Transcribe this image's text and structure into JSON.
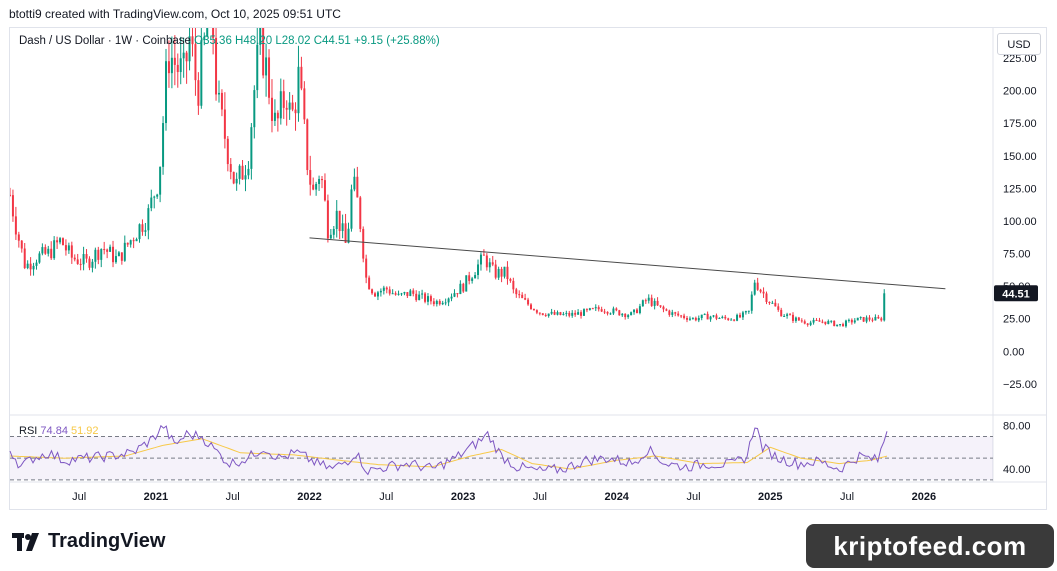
{
  "header": {
    "text": "btotti9 created with TradingView.com, Oct 10, 2025 09:51 UTC"
  },
  "legend": {
    "symbol": "Dash / US Dollar · 1W · Coinbase",
    "ohlc": "O35.36  H48.20  L28.02  C44.51",
    "change": "+9.15 (+25.88%)"
  },
  "currency_button": "USD",
  "rsi_label": {
    "name": "RSI",
    "value": "74.84",
    "ma": "51.92"
  },
  "footer": {
    "logo_text": "TradingView",
    "watermark": "kriptofeed.com"
  },
  "colors": {
    "up": "#089981",
    "down": "#f23645",
    "rsi": "#7e57c2",
    "rsi_ma": "#f7c948",
    "trendline": "#4a4a4a",
    "last_price_bg": "#131722"
  },
  "chart_data": [
    {
      "type": "candlestick",
      "pair": "Dash / US Dollar",
      "interval": "1W",
      "y_axis": {
        "ticks": [
          -25,
          0,
          25,
          50,
          75,
          100,
          125,
          150,
          175,
          200,
          225
        ],
        "tick_labels": [
          "−25.00",
          "0.00",
          "25.00",
          "50.00",
          "75.00",
          "100.00",
          "125.00",
          "150.00",
          "175.00",
          "200.00",
          "225.00"
        ],
        "range": [
          -45,
          248
        ]
      },
      "x_axis": {
        "labels": [
          {
            "label": "Jul",
            "t": 2020.5
          },
          {
            "label": "2021",
            "t": 2021.0
          },
          {
            "label": "Jul",
            "t": 2021.5
          },
          {
            "label": "2022",
            "t": 2022.0
          },
          {
            "label": "Jul",
            "t": 2022.5
          },
          {
            "label": "2023",
            "t": 2023.0
          },
          {
            "label": "Jul",
            "t": 2023.5
          },
          {
            "label": "2024",
            "t": 2024.0
          },
          {
            "label": "Jul",
            "t": 2024.5
          },
          {
            "label": "2025",
            "t": 2025.0
          },
          {
            "label": "Jul",
            "t": 2025.5
          },
          {
            "label": "2026",
            "t": 2026.0
          }
        ],
        "range": [
          2020.05,
          2026.45
        ]
      },
      "price_path": [
        {
          "t": 2020.05,
          "v": 120
        },
        {
          "t": 2020.1,
          "v": 90
        },
        {
          "t": 2020.15,
          "v": 65
        },
        {
          "t": 2020.22,
          "v": 72
        },
        {
          "t": 2020.3,
          "v": 75
        },
        {
          "t": 2020.38,
          "v": 85
        },
        {
          "t": 2020.45,
          "v": 72
        },
        {
          "t": 2020.55,
          "v": 68
        },
        {
          "t": 2020.65,
          "v": 80
        },
        {
          "t": 2020.75,
          "v": 70
        },
        {
          "t": 2020.85,
          "v": 88
        },
        {
          "t": 2020.95,
          "v": 105
        },
        {
          "t": 2021.02,
          "v": 135
        },
        {
          "t": 2021.08,
          "v": 230
        },
        {
          "t": 2021.13,
          "v": 220
        },
        {
          "t": 2021.18,
          "v": 210
        },
        {
          "t": 2021.22,
          "v": 240
        },
        {
          "t": 2021.27,
          "v": 200
        },
        {
          "t": 2021.31,
          "v": 230
        },
        {
          "t": 2021.36,
          "v": 270
        },
        {
          "t": 2021.4,
          "v": 190
        },
        {
          "t": 2021.46,
          "v": 160
        },
        {
          "t": 2021.52,
          "v": 125
        },
        {
          "t": 2021.6,
          "v": 150
        },
        {
          "t": 2021.64,
          "v": 200
        },
        {
          "t": 2021.68,
          "v": 240
        },
        {
          "t": 2021.72,
          "v": 215
        },
        {
          "t": 2021.78,
          "v": 170
        },
        {
          "t": 2021.85,
          "v": 200
        },
        {
          "t": 2021.88,
          "v": 175
        },
        {
          "t": 2021.93,
          "v": 210
        },
        {
          "t": 2021.98,
          "v": 150
        },
        {
          "t": 2022.02,
          "v": 120
        },
        {
          "t": 2022.07,
          "v": 140
        },
        {
          "t": 2022.12,
          "v": 95
        },
        {
          "t": 2022.18,
          "v": 105
        },
        {
          "t": 2022.24,
          "v": 80
        },
        {
          "t": 2022.28,
          "v": 130
        },
        {
          "t": 2022.32,
          "v": 110
        },
        {
          "t": 2022.37,
          "v": 55
        },
        {
          "t": 2022.42,
          "v": 45
        },
        {
          "t": 2022.5,
          "v": 48
        },
        {
          "t": 2022.58,
          "v": 42
        },
        {
          "t": 2022.66,
          "v": 45
        },
        {
          "t": 2022.75,
          "v": 40
        },
        {
          "t": 2022.83,
          "v": 38
        },
        {
          "t": 2022.9,
          "v": 42
        },
        {
          "t": 2023.0,
          "v": 50
        },
        {
          "t": 2023.07,
          "v": 62
        },
        {
          "t": 2023.14,
          "v": 72
        },
        {
          "t": 2023.2,
          "v": 60
        },
        {
          "t": 2023.28,
          "v": 60
        },
        {
          "t": 2023.33,
          "v": 45
        },
        {
          "t": 2023.4,
          "v": 38
        },
        {
          "t": 2023.5,
          "v": 30
        },
        {
          "t": 2023.6,
          "v": 28
        },
        {
          "t": 2023.7,
          "v": 28
        },
        {
          "t": 2023.8,
          "v": 30
        },
        {
          "t": 2023.9,
          "v": 33
        },
        {
          "t": 2024.0,
          "v": 30
        },
        {
          "t": 2024.1,
          "v": 28
        },
        {
          "t": 2024.2,
          "v": 40
        },
        {
          "t": 2024.28,
          "v": 33
        },
        {
          "t": 2024.38,
          "v": 28
        },
        {
          "t": 2024.5,
          "v": 25
        },
        {
          "t": 2024.6,
          "v": 27
        },
        {
          "t": 2024.7,
          "v": 25
        },
        {
          "t": 2024.8,
          "v": 26
        },
        {
          "t": 2024.86,
          "v": 30
        },
        {
          "t": 2024.9,
          "v": 55
        },
        {
          "t": 2024.93,
          "v": 48
        },
        {
          "t": 2025.0,
          "v": 38
        },
        {
          "t": 2025.06,
          "v": 30
        },
        {
          "t": 2025.15,
          "v": 25
        },
        {
          "t": 2025.25,
          "v": 22
        },
        {
          "t": 2025.35,
          "v": 23
        },
        {
          "t": 2025.45,
          "v": 20
        },
        {
          "t": 2025.55,
          "v": 24
        },
        {
          "t": 2025.65,
          "v": 25
        },
        {
          "t": 2025.72,
          "v": 24
        },
        {
          "t": 2025.76,
          "v": 44.51
        }
      ],
      "trendline": {
        "from": {
          "t": 2022.0,
          "v": 87
        },
        "to": {
          "t": 2026.14,
          "v": 48
        }
      },
      "last_price": "44.51",
      "grid": false
    },
    {
      "type": "line",
      "name": "RSI",
      "y_axis": {
        "ticks": [
          40,
          80
        ],
        "tick_labels": [
          "40.00",
          "80.00"
        ],
        "range": [
          28,
          88
        ],
        "bands": [
          30,
          50,
          70
        ]
      },
      "series": [
        {
          "name": "RSI",
          "points": [
            {
              "t": 2020.05,
              "v": 58
            },
            {
              "t": 2020.12,
              "v": 42
            },
            {
              "t": 2020.2,
              "v": 50
            },
            {
              "t": 2020.3,
              "v": 55
            },
            {
              "t": 2020.4,
              "v": 48
            },
            {
              "t": 2020.55,
              "v": 50
            },
            {
              "t": 2020.7,
              "v": 52
            },
            {
              "t": 2020.85,
              "v": 55
            },
            {
              "t": 2020.98,
              "v": 68
            },
            {
              "t": 2021.05,
              "v": 80
            },
            {
              "t": 2021.12,
              "v": 62
            },
            {
              "t": 2021.2,
              "v": 72
            },
            {
              "t": 2021.3,
              "v": 70
            },
            {
              "t": 2021.38,
              "v": 58
            },
            {
              "t": 2021.48,
              "v": 45
            },
            {
              "t": 2021.6,
              "v": 50
            },
            {
              "t": 2021.7,
              "v": 60
            },
            {
              "t": 2021.8,
              "v": 50
            },
            {
              "t": 2021.92,
              "v": 55
            },
            {
              "t": 2022.05,
              "v": 45
            },
            {
              "t": 2022.15,
              "v": 40
            },
            {
              "t": 2022.25,
              "v": 48
            },
            {
              "t": 2022.3,
              "v": 55
            },
            {
              "t": 2022.38,
              "v": 38
            },
            {
              "t": 2022.5,
              "v": 42
            },
            {
              "t": 2022.65,
              "v": 45
            },
            {
              "t": 2022.8,
              "v": 40
            },
            {
              "t": 2022.95,
              "v": 50
            },
            {
              "t": 2023.1,
              "v": 65
            },
            {
              "t": 2023.16,
              "v": 72
            },
            {
              "t": 2023.25,
              "v": 52
            },
            {
              "t": 2023.35,
              "v": 42
            },
            {
              "t": 2023.5,
              "v": 38
            },
            {
              "t": 2023.65,
              "v": 40
            },
            {
              "t": 2023.8,
              "v": 48
            },
            {
              "t": 2023.95,
              "v": 50
            },
            {
              "t": 2024.1,
              "v": 45
            },
            {
              "t": 2024.2,
              "v": 58
            },
            {
              "t": 2024.32,
              "v": 45
            },
            {
              "t": 2024.45,
              "v": 42
            },
            {
              "t": 2024.6,
              "v": 45
            },
            {
              "t": 2024.75,
              "v": 44
            },
            {
              "t": 2024.85,
              "v": 52
            },
            {
              "t": 2024.9,
              "v": 82
            },
            {
              "t": 2024.95,
              "v": 60
            },
            {
              "t": 2025.05,
              "v": 50
            },
            {
              "t": 2025.18,
              "v": 45
            },
            {
              "t": 2025.32,
              "v": 47
            },
            {
              "t": 2025.45,
              "v": 40
            },
            {
              "t": 2025.58,
              "v": 52
            },
            {
              "t": 2025.7,
              "v": 48
            },
            {
              "t": 2025.76,
              "v": 74.84
            }
          ]
        },
        {
          "name": "RSI-based MA",
          "points": [
            {
              "t": 2020.05,
              "v": 52
            },
            {
              "t": 2020.4,
              "v": 50
            },
            {
              "t": 2020.8,
              "v": 52
            },
            {
              "t": 2021.05,
              "v": 62
            },
            {
              "t": 2021.3,
              "v": 68
            },
            {
              "t": 2021.55,
              "v": 55
            },
            {
              "t": 2021.9,
              "v": 53
            },
            {
              "t": 2022.2,
              "v": 48
            },
            {
              "t": 2022.45,
              "v": 44
            },
            {
              "t": 2022.8,
              "v": 42
            },
            {
              "t": 2023.05,
              "v": 52
            },
            {
              "t": 2023.25,
              "v": 58
            },
            {
              "t": 2023.45,
              "v": 45
            },
            {
              "t": 2023.7,
              "v": 40
            },
            {
              "t": 2024.0,
              "v": 48
            },
            {
              "t": 2024.25,
              "v": 52
            },
            {
              "t": 2024.55,
              "v": 45
            },
            {
              "t": 2024.85,
              "v": 46
            },
            {
              "t": 2025.0,
              "v": 60
            },
            {
              "t": 2025.2,
              "v": 50
            },
            {
              "t": 2025.45,
              "v": 45
            },
            {
              "t": 2025.65,
              "v": 48
            },
            {
              "t": 2025.76,
              "v": 51.92
            }
          ]
        }
      ]
    }
  ]
}
